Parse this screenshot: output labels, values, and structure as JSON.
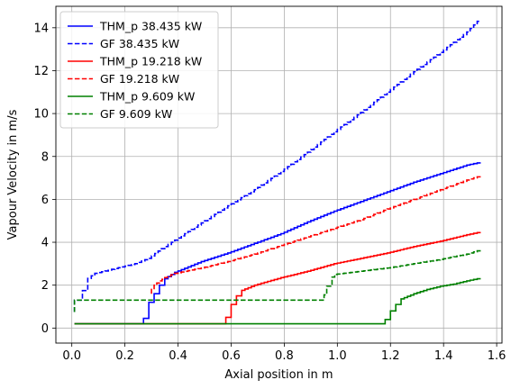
{
  "chart_data": {
    "type": "line",
    "title": "",
    "xlabel": "Axial position in m",
    "ylabel": "Vapour Velocity in m/s",
    "xlim": [
      -0.06,
      1.62
    ],
    "ylim": [
      -0.7,
      15.0
    ],
    "xticks": [
      0.0,
      0.2,
      0.4,
      0.6,
      0.8,
      1.0,
      1.2,
      1.4,
      1.6
    ],
    "xtick_labels": [
      "0.0",
      "0.2",
      "0.4",
      "0.6",
      "0.8",
      "1.0",
      "1.2",
      "1.4",
      "1.6"
    ],
    "yticks": [
      0,
      2,
      4,
      6,
      8,
      10,
      12,
      14
    ],
    "ytick_labels": [
      "0",
      "2",
      "4",
      "6",
      "8",
      "10",
      "12",
      "14"
    ],
    "grid": true,
    "legend_position": "top-left",
    "series": [
      {
        "name": "THM_p 38.435 kW",
        "color": "#0000ff",
        "linestyle": "solid",
        "step": true,
        "points": [
          [
            0.01,
            0.2
          ],
          [
            0.27,
            0.2
          ],
          [
            0.27,
            0.45
          ],
          [
            0.29,
            0.45
          ],
          [
            0.29,
            1.2
          ],
          [
            0.31,
            1.2
          ],
          [
            0.31,
            1.6
          ],
          [
            0.33,
            1.6
          ],
          [
            0.33,
            2.0
          ],
          [
            0.35,
            2.0
          ],
          [
            0.35,
            2.2
          ],
          [
            0.4,
            2.6
          ],
          [
            0.5,
            3.1
          ],
          [
            0.6,
            3.5
          ],
          [
            0.7,
            3.95
          ],
          [
            0.8,
            4.4
          ],
          [
            0.9,
            4.95
          ],
          [
            1.0,
            5.45
          ],
          [
            1.1,
            5.9
          ],
          [
            1.2,
            6.35
          ],
          [
            1.3,
            6.8
          ],
          [
            1.4,
            7.2
          ],
          [
            1.5,
            7.6
          ],
          [
            1.54,
            7.7
          ]
        ]
      },
      {
        "name": "GF 38.435 kW",
        "color": "#0000ff",
        "linestyle": "dashed",
        "step": true,
        "points": [
          [
            0.01,
            0.75
          ],
          [
            0.01,
            1.3
          ],
          [
            0.04,
            1.3
          ],
          [
            0.04,
            1.75
          ],
          [
            0.06,
            1.75
          ],
          [
            0.06,
            2.2
          ],
          [
            0.1,
            2.55
          ],
          [
            0.15,
            2.7
          ],
          [
            0.2,
            2.85
          ],
          [
            0.25,
            3.0
          ],
          [
            0.3,
            3.25
          ],
          [
            0.35,
            3.7
          ],
          [
            0.4,
            4.1
          ],
          [
            0.5,
            4.9
          ],
          [
            0.6,
            5.7
          ],
          [
            0.7,
            6.45
          ],
          [
            0.8,
            7.3
          ],
          [
            0.9,
            8.2
          ],
          [
            1.0,
            9.15
          ],
          [
            1.1,
            10.05
          ],
          [
            1.2,
            11.0
          ],
          [
            1.3,
            11.95
          ],
          [
            1.4,
            12.85
          ],
          [
            1.5,
            13.8
          ],
          [
            1.54,
            14.3
          ]
        ]
      },
      {
        "name": "THM_p 19.218 kW",
        "color": "#ff0000",
        "linestyle": "solid",
        "step": true,
        "points": [
          [
            0.01,
            0.2
          ],
          [
            0.58,
            0.2
          ],
          [
            0.58,
            0.5
          ],
          [
            0.6,
            0.5
          ],
          [
            0.6,
            1.1
          ],
          [
            0.62,
            1.1
          ],
          [
            0.62,
            1.5
          ],
          [
            0.64,
            1.5
          ],
          [
            0.64,
            1.7
          ],
          [
            0.7,
            2.0
          ],
          [
            0.8,
            2.35
          ],
          [
            0.9,
            2.65
          ],
          [
            1.0,
            3.0
          ],
          [
            1.1,
            3.25
          ],
          [
            1.2,
            3.5
          ],
          [
            1.3,
            3.8
          ],
          [
            1.4,
            4.05
          ],
          [
            1.5,
            4.35
          ],
          [
            1.54,
            4.45
          ]
        ]
      },
      {
        "name": "GF 19.218 kW",
        "color": "#ff0000",
        "linestyle": "dashed",
        "step": true,
        "points": [
          [
            0.3,
            1.6
          ],
          [
            0.32,
            2.0
          ],
          [
            0.34,
            2.2
          ],
          [
            0.36,
            2.35
          ],
          [
            0.4,
            2.55
          ],
          [
            0.5,
            2.8
          ],
          [
            0.6,
            3.1
          ],
          [
            0.7,
            3.45
          ],
          [
            0.8,
            3.85
          ],
          [
            0.9,
            4.25
          ],
          [
            1.0,
            4.65
          ],
          [
            1.1,
            5.05
          ],
          [
            1.2,
            5.55
          ],
          [
            1.3,
            6.0
          ],
          [
            1.4,
            6.45
          ],
          [
            1.5,
            6.9
          ],
          [
            1.54,
            7.05
          ]
        ]
      },
      {
        "name": "THM_p 9.609 kW",
        "color": "#008000",
        "linestyle": "solid",
        "step": true,
        "points": [
          [
            0.01,
            0.2
          ],
          [
            1.18,
            0.2
          ],
          [
            1.18,
            0.4
          ],
          [
            1.2,
            0.4
          ],
          [
            1.2,
            0.8
          ],
          [
            1.22,
            0.8
          ],
          [
            1.22,
            1.1
          ],
          [
            1.24,
            1.1
          ],
          [
            1.24,
            1.3
          ],
          [
            1.3,
            1.6
          ],
          [
            1.35,
            1.8
          ],
          [
            1.4,
            1.95
          ],
          [
            1.45,
            2.05
          ],
          [
            1.5,
            2.2
          ],
          [
            1.54,
            2.3
          ]
        ]
      },
      {
        "name": "GF 9.609 kW",
        "color": "#008000",
        "linestyle": "dashed",
        "step": true,
        "points": [
          [
            0.01,
            0.75
          ],
          [
            0.01,
            1.3
          ],
          [
            0.95,
            1.3
          ],
          [
            0.95,
            1.55
          ],
          [
            0.96,
            1.55
          ],
          [
            0.96,
            1.95
          ],
          [
            0.98,
            1.95
          ],
          [
            0.98,
            2.25
          ],
          [
            1.0,
            2.5
          ],
          [
            1.1,
            2.65
          ],
          [
            1.2,
            2.8
          ],
          [
            1.3,
            3.0
          ],
          [
            1.4,
            3.2
          ],
          [
            1.5,
            3.45
          ],
          [
            1.54,
            3.6
          ]
        ]
      }
    ]
  }
}
